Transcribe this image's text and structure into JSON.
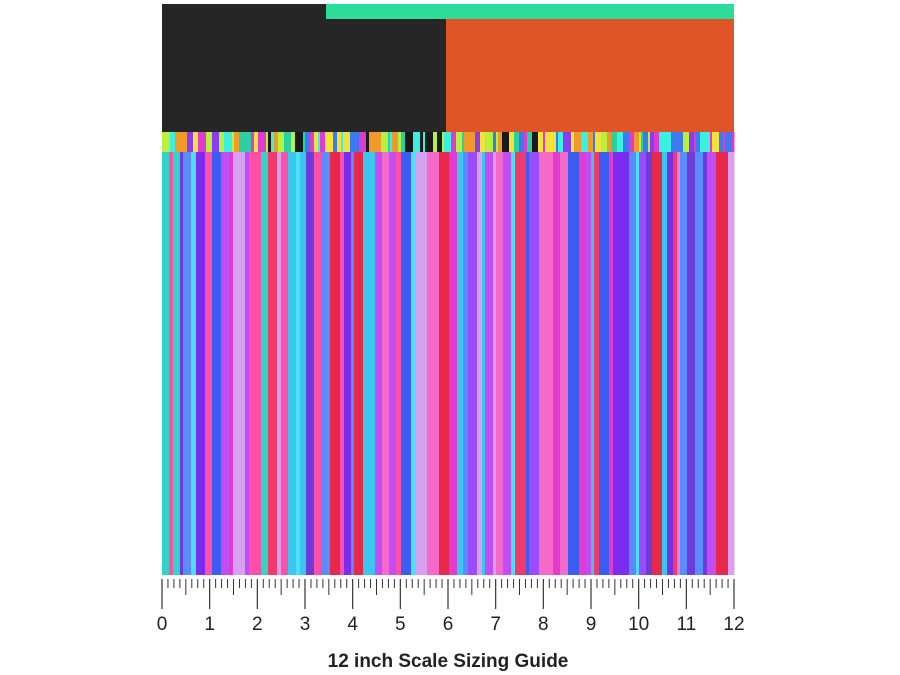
{
  "ruler": {
    "labels": [
      0,
      1,
      2,
      3,
      4,
      5,
      6,
      7,
      8,
      9,
      10,
      11,
      12
    ]
  },
  "caption": "12 inch Scale Sizing Guide"
}
